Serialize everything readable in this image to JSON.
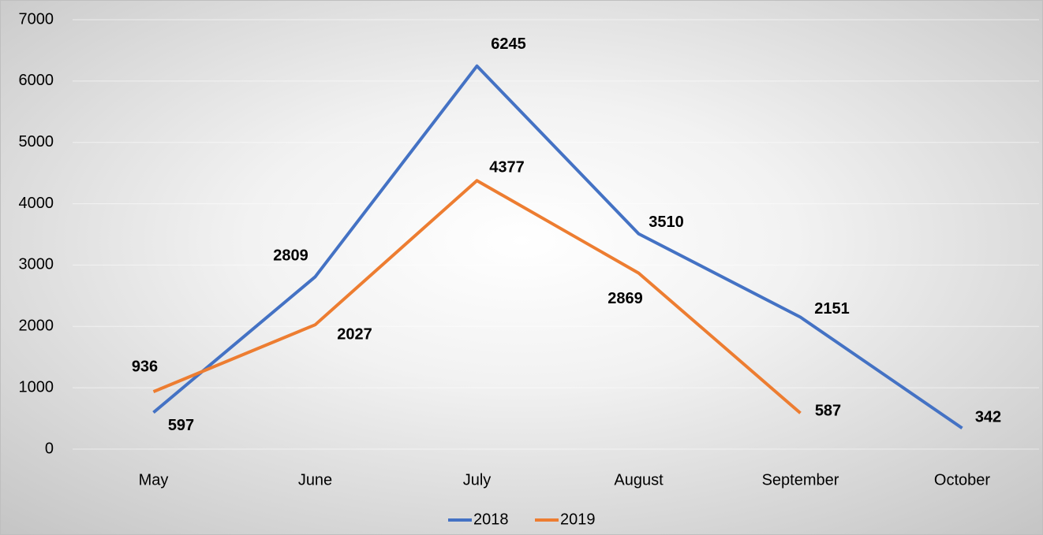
{
  "chart_data": {
    "type": "line",
    "categories": [
      "May",
      "June",
      "July",
      "August",
      "September",
      "October"
    ],
    "series": [
      {
        "name": "2018",
        "color": "#4472c4",
        "values": [
          597,
          2809,
          6245,
          3510,
          2151,
          342
        ]
      },
      {
        "name": "2019",
        "color": "#ed7d31",
        "values": [
          936,
          2027,
          4377,
          2869,
          587,
          null
        ]
      }
    ],
    "ylim": [
      0,
      7000
    ],
    "yticks": [
      0,
      1000,
      2000,
      3000,
      4000,
      5000,
      6000,
      7000
    ],
    "grid": true,
    "legend": "bottom"
  }
}
